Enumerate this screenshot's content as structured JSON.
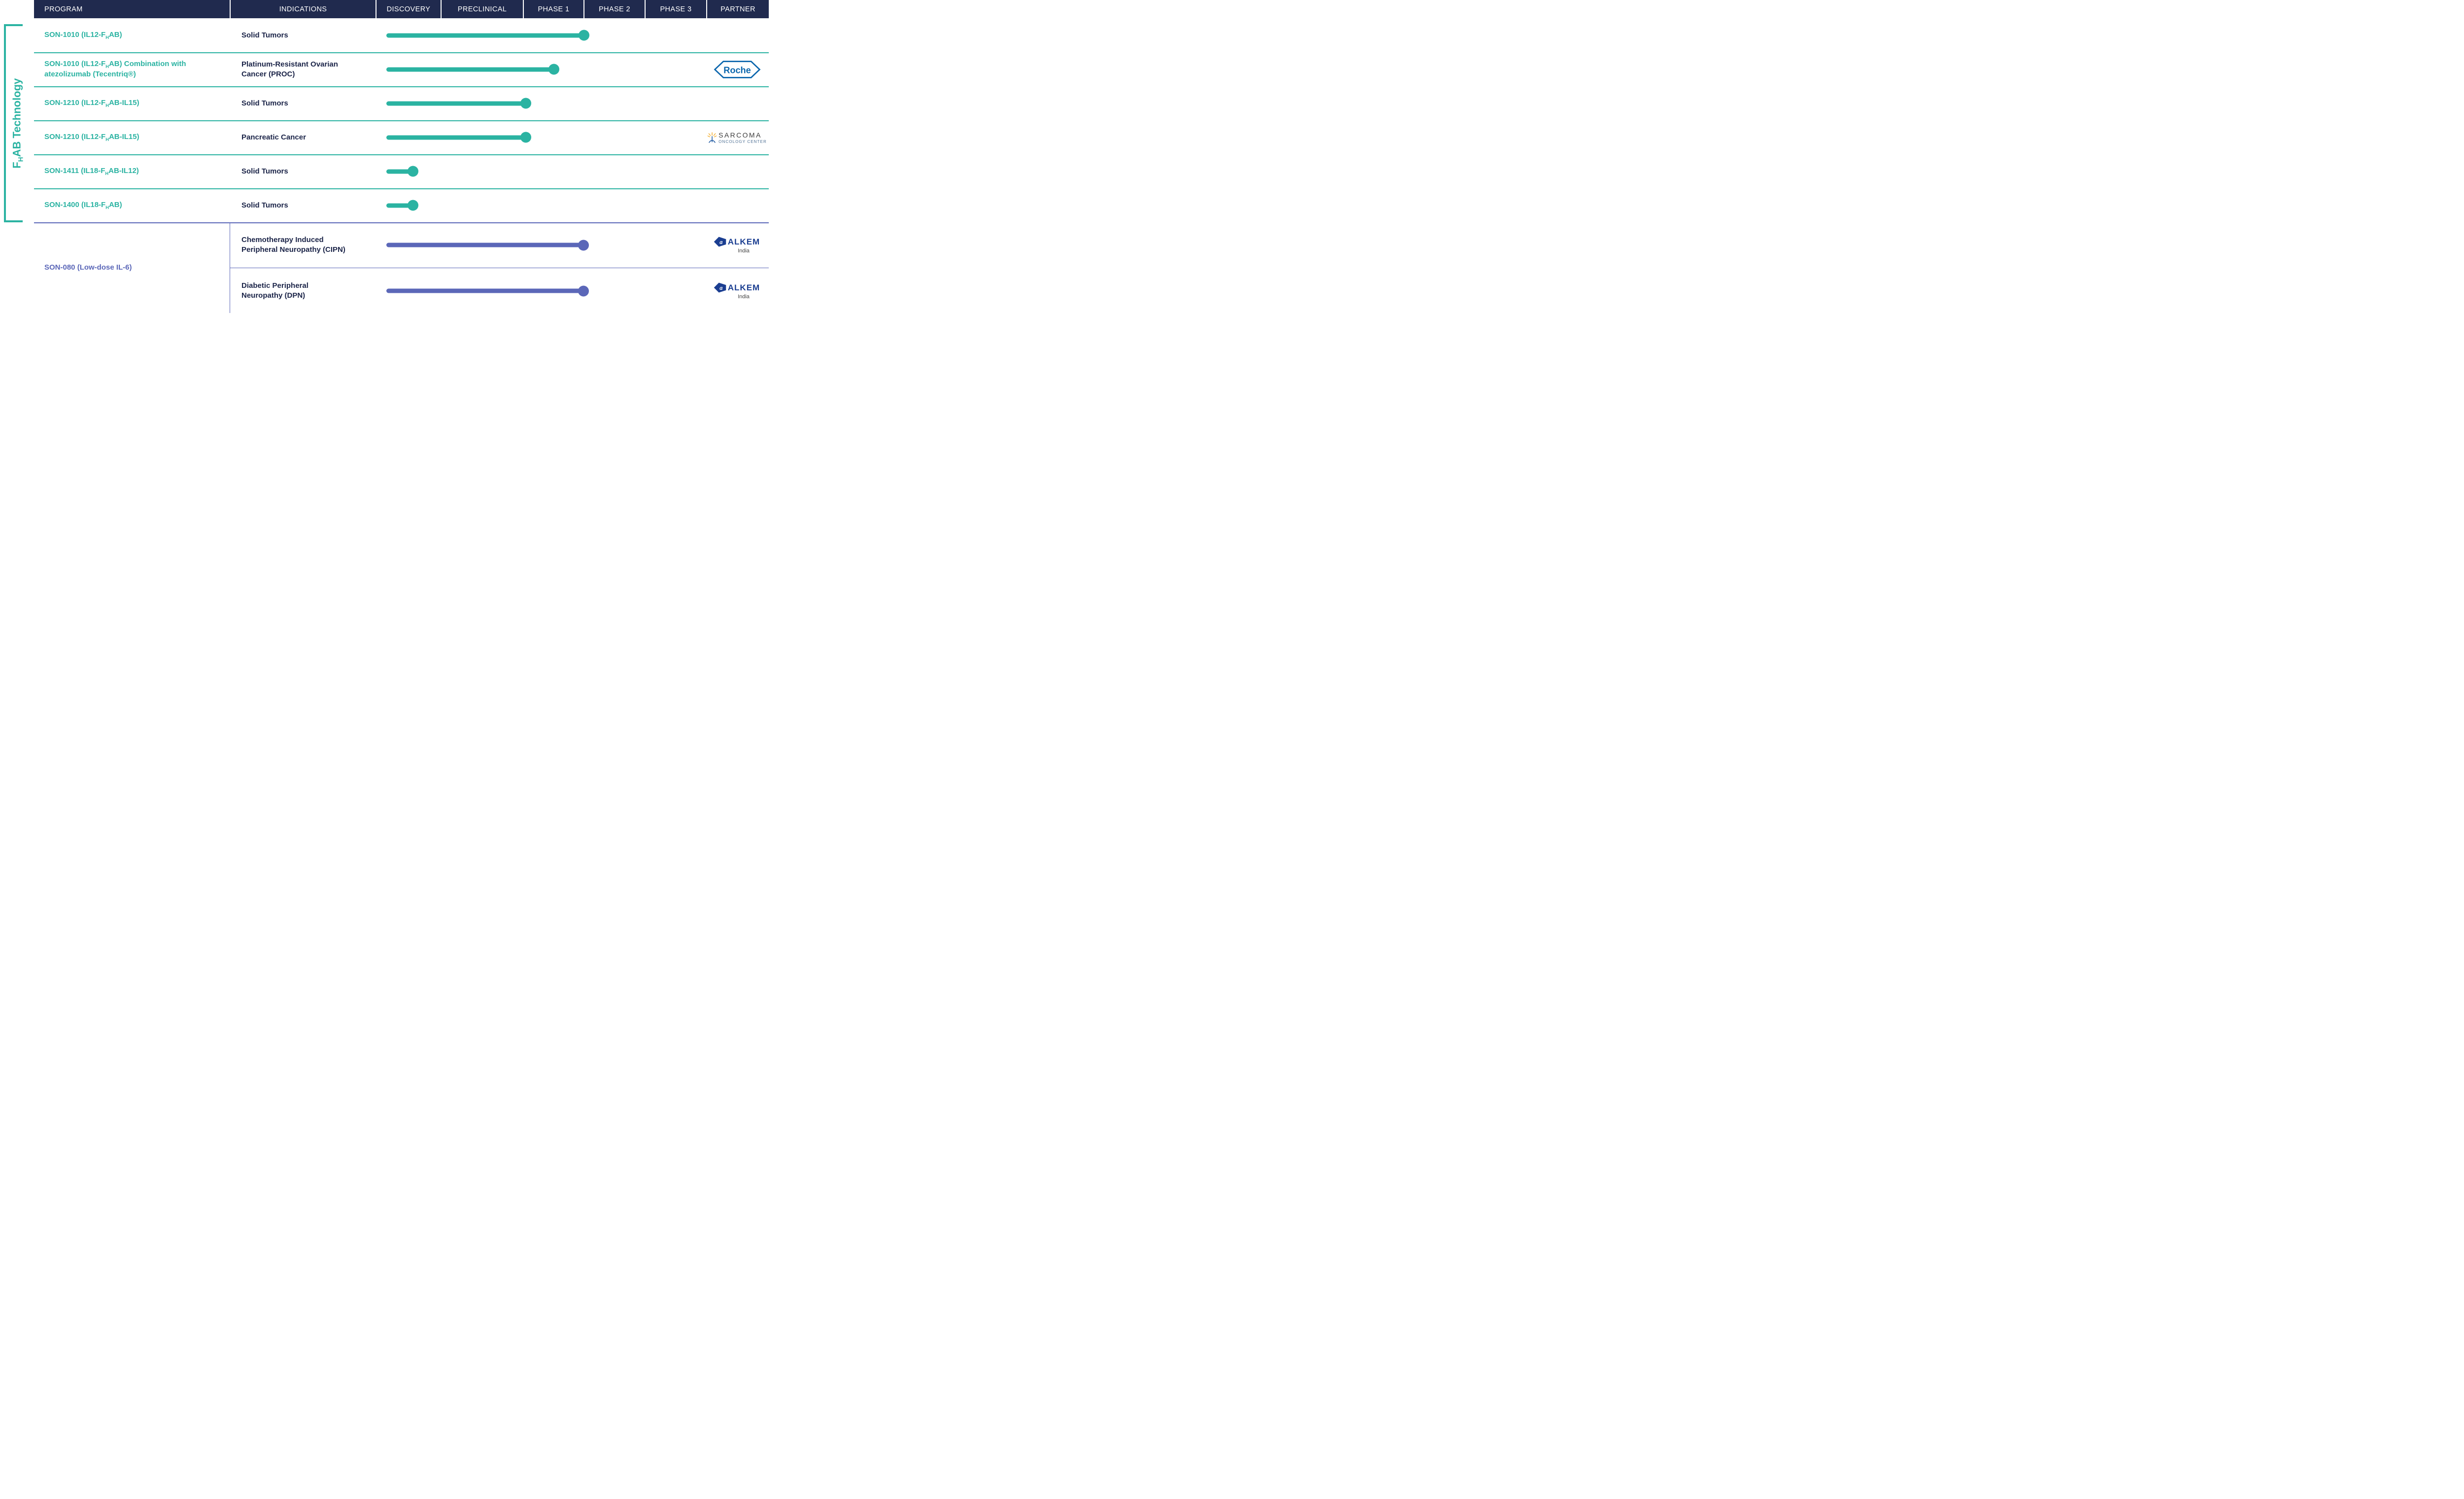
{
  "colors": {
    "header_bg": "#202a4e",
    "teal": "#2bb3a2",
    "purple": "#5b67b8",
    "navy_text": "#1b2448",
    "roche_blue": "#0b66ad",
    "alkem_blue": "#1b3e91"
  },
  "header": {
    "columns": [
      "PROGRAM",
      "INDICATIONS",
      "DISCOVERY",
      "PRECLINICAL",
      "PHASE 1",
      "PHASE 2",
      "PHASE 3",
      "PARTNER"
    ]
  },
  "side_label": {
    "pre": "F",
    "sub": "H",
    "post": "AB Technology"
  },
  "rows": [
    {
      "program": {
        "pre": "SON-1010 (IL12-F",
        "sub": "H",
        "post": "AB)"
      },
      "indication": "Solid Tumors",
      "bar": {
        "color": "teal",
        "start_pct": 3.3,
        "end_pct": 63
      },
      "partner": ""
    },
    {
      "program": {
        "pre": "SON-1010 (IL12-F",
        "sub": "H",
        "post": "AB) Combination with atezolizumab (Tecentriq®)"
      },
      "indication": "Platinum-Resistant Ovarian Cancer (PROC)",
      "bar": {
        "color": "teal",
        "start_pct": 3.3,
        "end_pct": 54
      },
      "partner": "Roche"
    },
    {
      "program": {
        "pre": "SON-1210 (IL12-F",
        "sub": "H",
        "post": "AB-IL15)"
      },
      "indication": "Solid Tumors",
      "bar": {
        "color": "teal",
        "start_pct": 3.3,
        "end_pct": 45.5
      },
      "partner": ""
    },
    {
      "program": {
        "pre": "SON-1210 (IL12-F",
        "sub": "H",
        "post": "AB-IL15)"
      },
      "indication": "Pancreatic Cancer",
      "bar": {
        "color": "teal",
        "start_pct": 3.3,
        "end_pct": 45.5
      },
      "partner": "Sarcoma Oncology Center"
    },
    {
      "program": {
        "pre": "SON-1411 (IL18-F",
        "sub": "H",
        "post": "AB-IL12)"
      },
      "indication": "Solid Tumors",
      "bar": {
        "color": "teal",
        "start_pct": 3.3,
        "end_pct": 11.3
      },
      "partner": ""
    },
    {
      "program": {
        "pre": "SON-1400 (IL18-F",
        "sub": "H",
        "post": "AB)"
      },
      "indication": "Solid Tumors",
      "bar": {
        "color": "teal",
        "start_pct": 3.3,
        "end_pct": 11.3
      },
      "partner": ""
    }
  ],
  "son080": {
    "program": {
      "pre": "SON-080 (Low-dose IL-6)",
      "sub": "",
      "post": ""
    },
    "subrows": [
      {
        "indication": "Chemotherapy Induced Peripheral Neuropathy (CIPN)",
        "bar": {
          "color": "purple",
          "start_pct": 3.3,
          "end_pct": 63
        },
        "partner": "ALKEM India"
      },
      {
        "indication": "Diabetic Peripheral Neuropathy (DPN)",
        "bar": {
          "color": "purple",
          "start_pct": 3.3,
          "end_pct": 63
        },
        "partner": "ALKEM India"
      }
    ]
  },
  "partners": {
    "roche": {
      "label": "Roche"
    },
    "sarcoma": {
      "line1": "SARCOMA",
      "line2": "ONCOLOGY CENTER"
    },
    "alkem": {
      "letter": "a",
      "label": "ALKEM",
      "sub": "India"
    }
  },
  "chart_data": {
    "type": "bar",
    "orientation": "horizontal",
    "stages": [
      "Discovery",
      "Preclinical",
      "Phase 1",
      "Phase 2",
      "Phase 3"
    ],
    "unit": "development stages completed (1 = Discovery done, 2 = Preclinical done, 3 = Phase 1 done)",
    "group_label": "FHAB Technology (applies to rows 1-6)",
    "series": [
      {
        "program": "SON-1010 (IL12-FHAB)",
        "indication": "Solid Tumors",
        "group": "FHAB Technology",
        "progress": 3.0,
        "color": "teal",
        "partner": null
      },
      {
        "program": "SON-1010 (IL12-FHAB) Combination with atezolizumab (Tecentriq®)",
        "indication": "Platinum-Resistant Ovarian Cancer (PROC)",
        "group": "FHAB Technology",
        "progress": 2.5,
        "color": "teal",
        "partner": "Roche"
      },
      {
        "program": "SON-1210 (IL12-FHAB-IL15)",
        "indication": "Solid Tumors",
        "group": "FHAB Technology",
        "progress": 2.05,
        "color": "teal",
        "partner": null
      },
      {
        "program": "SON-1210 (IL12-FHAB-IL15)",
        "indication": "Pancreatic Cancer",
        "group": "FHAB Technology",
        "progress": 2.05,
        "color": "teal",
        "partner": "Sarcoma Oncology Center"
      },
      {
        "program": "SON-1411 (IL18-FHAB-IL12)",
        "indication": "Solid Tumors",
        "group": "FHAB Technology",
        "progress": 0.6,
        "color": "teal",
        "partner": null
      },
      {
        "program": "SON-1400 (IL18-FHAB)",
        "indication": "Solid Tumors",
        "group": "FHAB Technology",
        "progress": 0.6,
        "color": "teal",
        "partner": null
      },
      {
        "program": "SON-080 (Low-dose IL-6)",
        "indication": "Chemotherapy Induced Peripheral Neuropathy (CIPN)",
        "group": "",
        "progress": 3.0,
        "color": "purple",
        "partner": "ALKEM India"
      },
      {
        "program": "SON-080 (Low-dose IL-6)",
        "indication": "Diabetic Peripheral Neuropathy (DPN)",
        "group": "",
        "progress": 3.0,
        "color": "purple",
        "partner": "ALKEM India"
      }
    ]
  }
}
